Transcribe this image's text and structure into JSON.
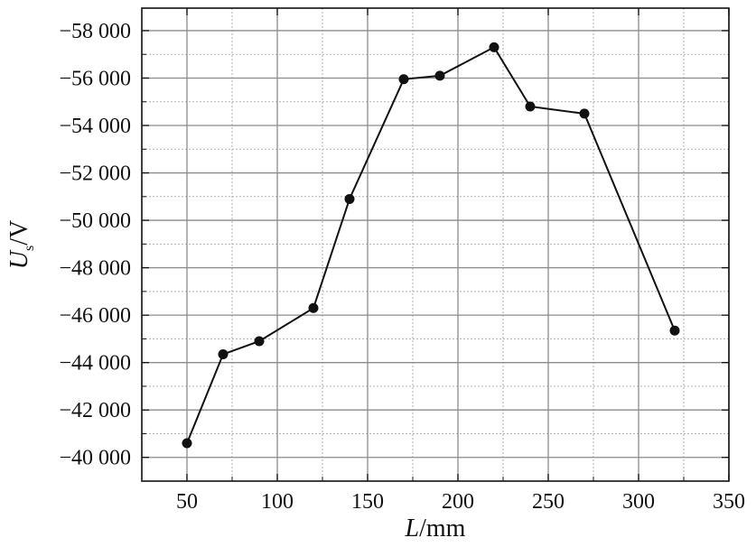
{
  "chart_data": {
    "type": "line",
    "xlabel": {
      "symbol": "L",
      "unit": "/mm"
    },
    "ylabel": {
      "symbol": "U",
      "subscript": "s",
      "unit": "/V"
    },
    "xlim": [
      25,
      350
    ],
    "ylim": [
      -39000,
      -58950
    ],
    "y_reversed": true,
    "xticks": [
      50,
      100,
      150,
      200,
      250,
      300,
      350
    ],
    "xtick_labels": [
      "50",
      "100",
      "150",
      "200",
      "250",
      "300",
      "350"
    ],
    "yticks": [
      -40000,
      -42000,
      -44000,
      -46000,
      -48000,
      -50000,
      -52000,
      -54000,
      -56000,
      -58000
    ],
    "ytick_labels": [
      "−40 000",
      "−42 000",
      "−44 000",
      "−46 000",
      "−48 000",
      "−50 000",
      "−52 000",
      "−54 000",
      "−56 000",
      "−58 000"
    ],
    "grid": true,
    "series": [
      {
        "x": [
          50,
          70,
          90,
          120,
          140,
          170,
          190,
          220,
          240,
          270,
          320
        ],
        "y": [
          -40600,
          -44350,
          -44900,
          -46300,
          -50900,
          -55950,
          -56100,
          -57300,
          -54800,
          -54500,
          -45350
        ]
      }
    ]
  }
}
